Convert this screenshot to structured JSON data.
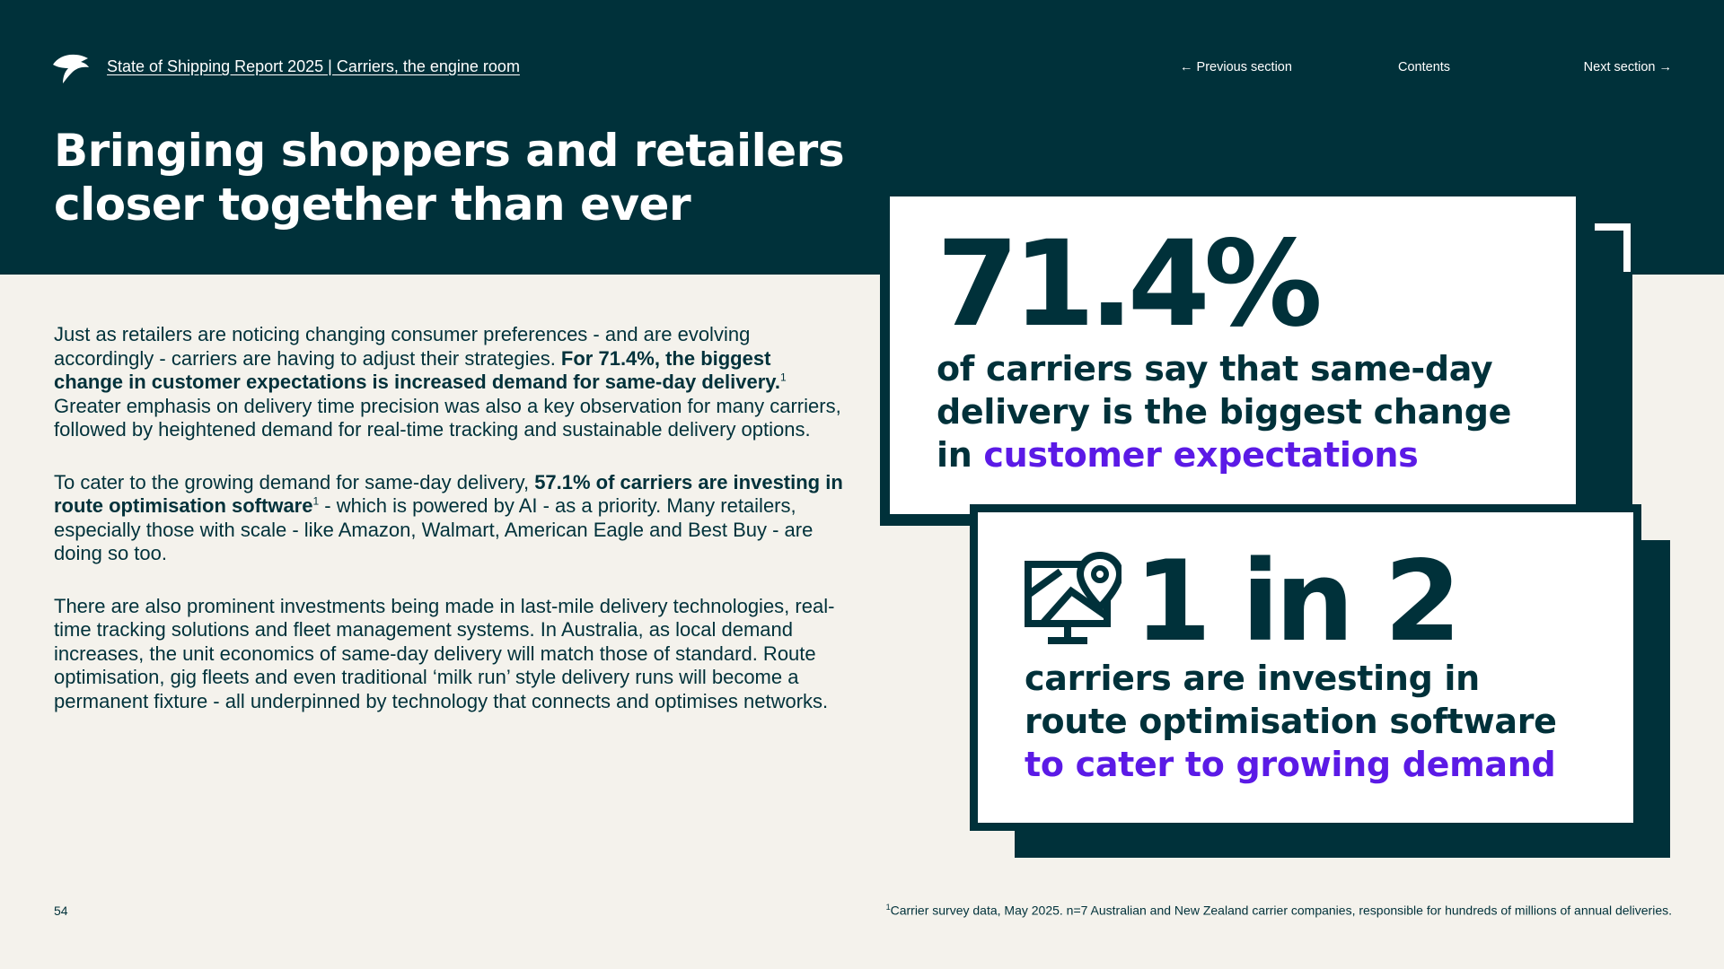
{
  "header": {
    "breadcrumb": "State of Shipping Report 2025 | Carriers, the engine room",
    "nav_prev": "← Previous section",
    "nav_contents": "Contents",
    "nav_next": "Next section →"
  },
  "title": {
    "line1": "Bringing shoppers and retailers",
    "line2": "closer together than ever"
  },
  "body": {
    "p1_a": "Just as retailers are noticing changing consumer preferences - and are evolving accordingly - carriers are having to adjust their strategies. ",
    "p1_bold": "For 71.4%, the biggest change in customer expectations is increased demand for same-day delivery.",
    "p1_sup": "1",
    "p1_b": " Greater emphasis on delivery time precision was also a key observation for many carriers, followed by heightened demand for real-time tracking and sustainable delivery options.",
    "p2_a": "To cater to the growing demand for same-day delivery, ",
    "p2_bold": "57.1% of carriers are investing in route optimisation software",
    "p2_sup": "1",
    "p2_b": " - which is powered by AI - as a priority. Many retailers, especially those with scale - like Amazon, Walmart, American Eagle and Best Buy - are doing so too.",
    "p3": "There are also prominent investments being made in last-mile delivery technologies, real-time tracking solutions and fleet management systems. In Australia, as local demand increases, the unit economics of same-day delivery will match those of standard. Route optimisation, gig fleets and even traditional ‘milk run’ style delivery runs will become a permanent fixture - all underpinned by technology that connects and optimises networks."
  },
  "stat1": {
    "value": "71.4%",
    "line1": "of carriers say that same-day",
    "line2": "delivery is the biggest change",
    "line3_plain": "in ",
    "line3_accent": "customer expectations"
  },
  "stat2": {
    "icon": "route-map-pin-icon",
    "value": "1 in 2",
    "line1": "carriers are investing in",
    "line2": "route optimisation software",
    "line3_accent": "to cater to growing demand"
  },
  "footer": {
    "page_number": "54",
    "footnote_sup": "1",
    "footnote": "Carrier survey data, May 2025. n=7 Australian and New Zealand carrier companies, responsible for hundreds of millions of annual deliveries."
  },
  "colors": {
    "dark_teal": "#00313a",
    "background": "#f4f2ec",
    "accent_purple": "#5b1ae6",
    "white": "#ffffff"
  }
}
